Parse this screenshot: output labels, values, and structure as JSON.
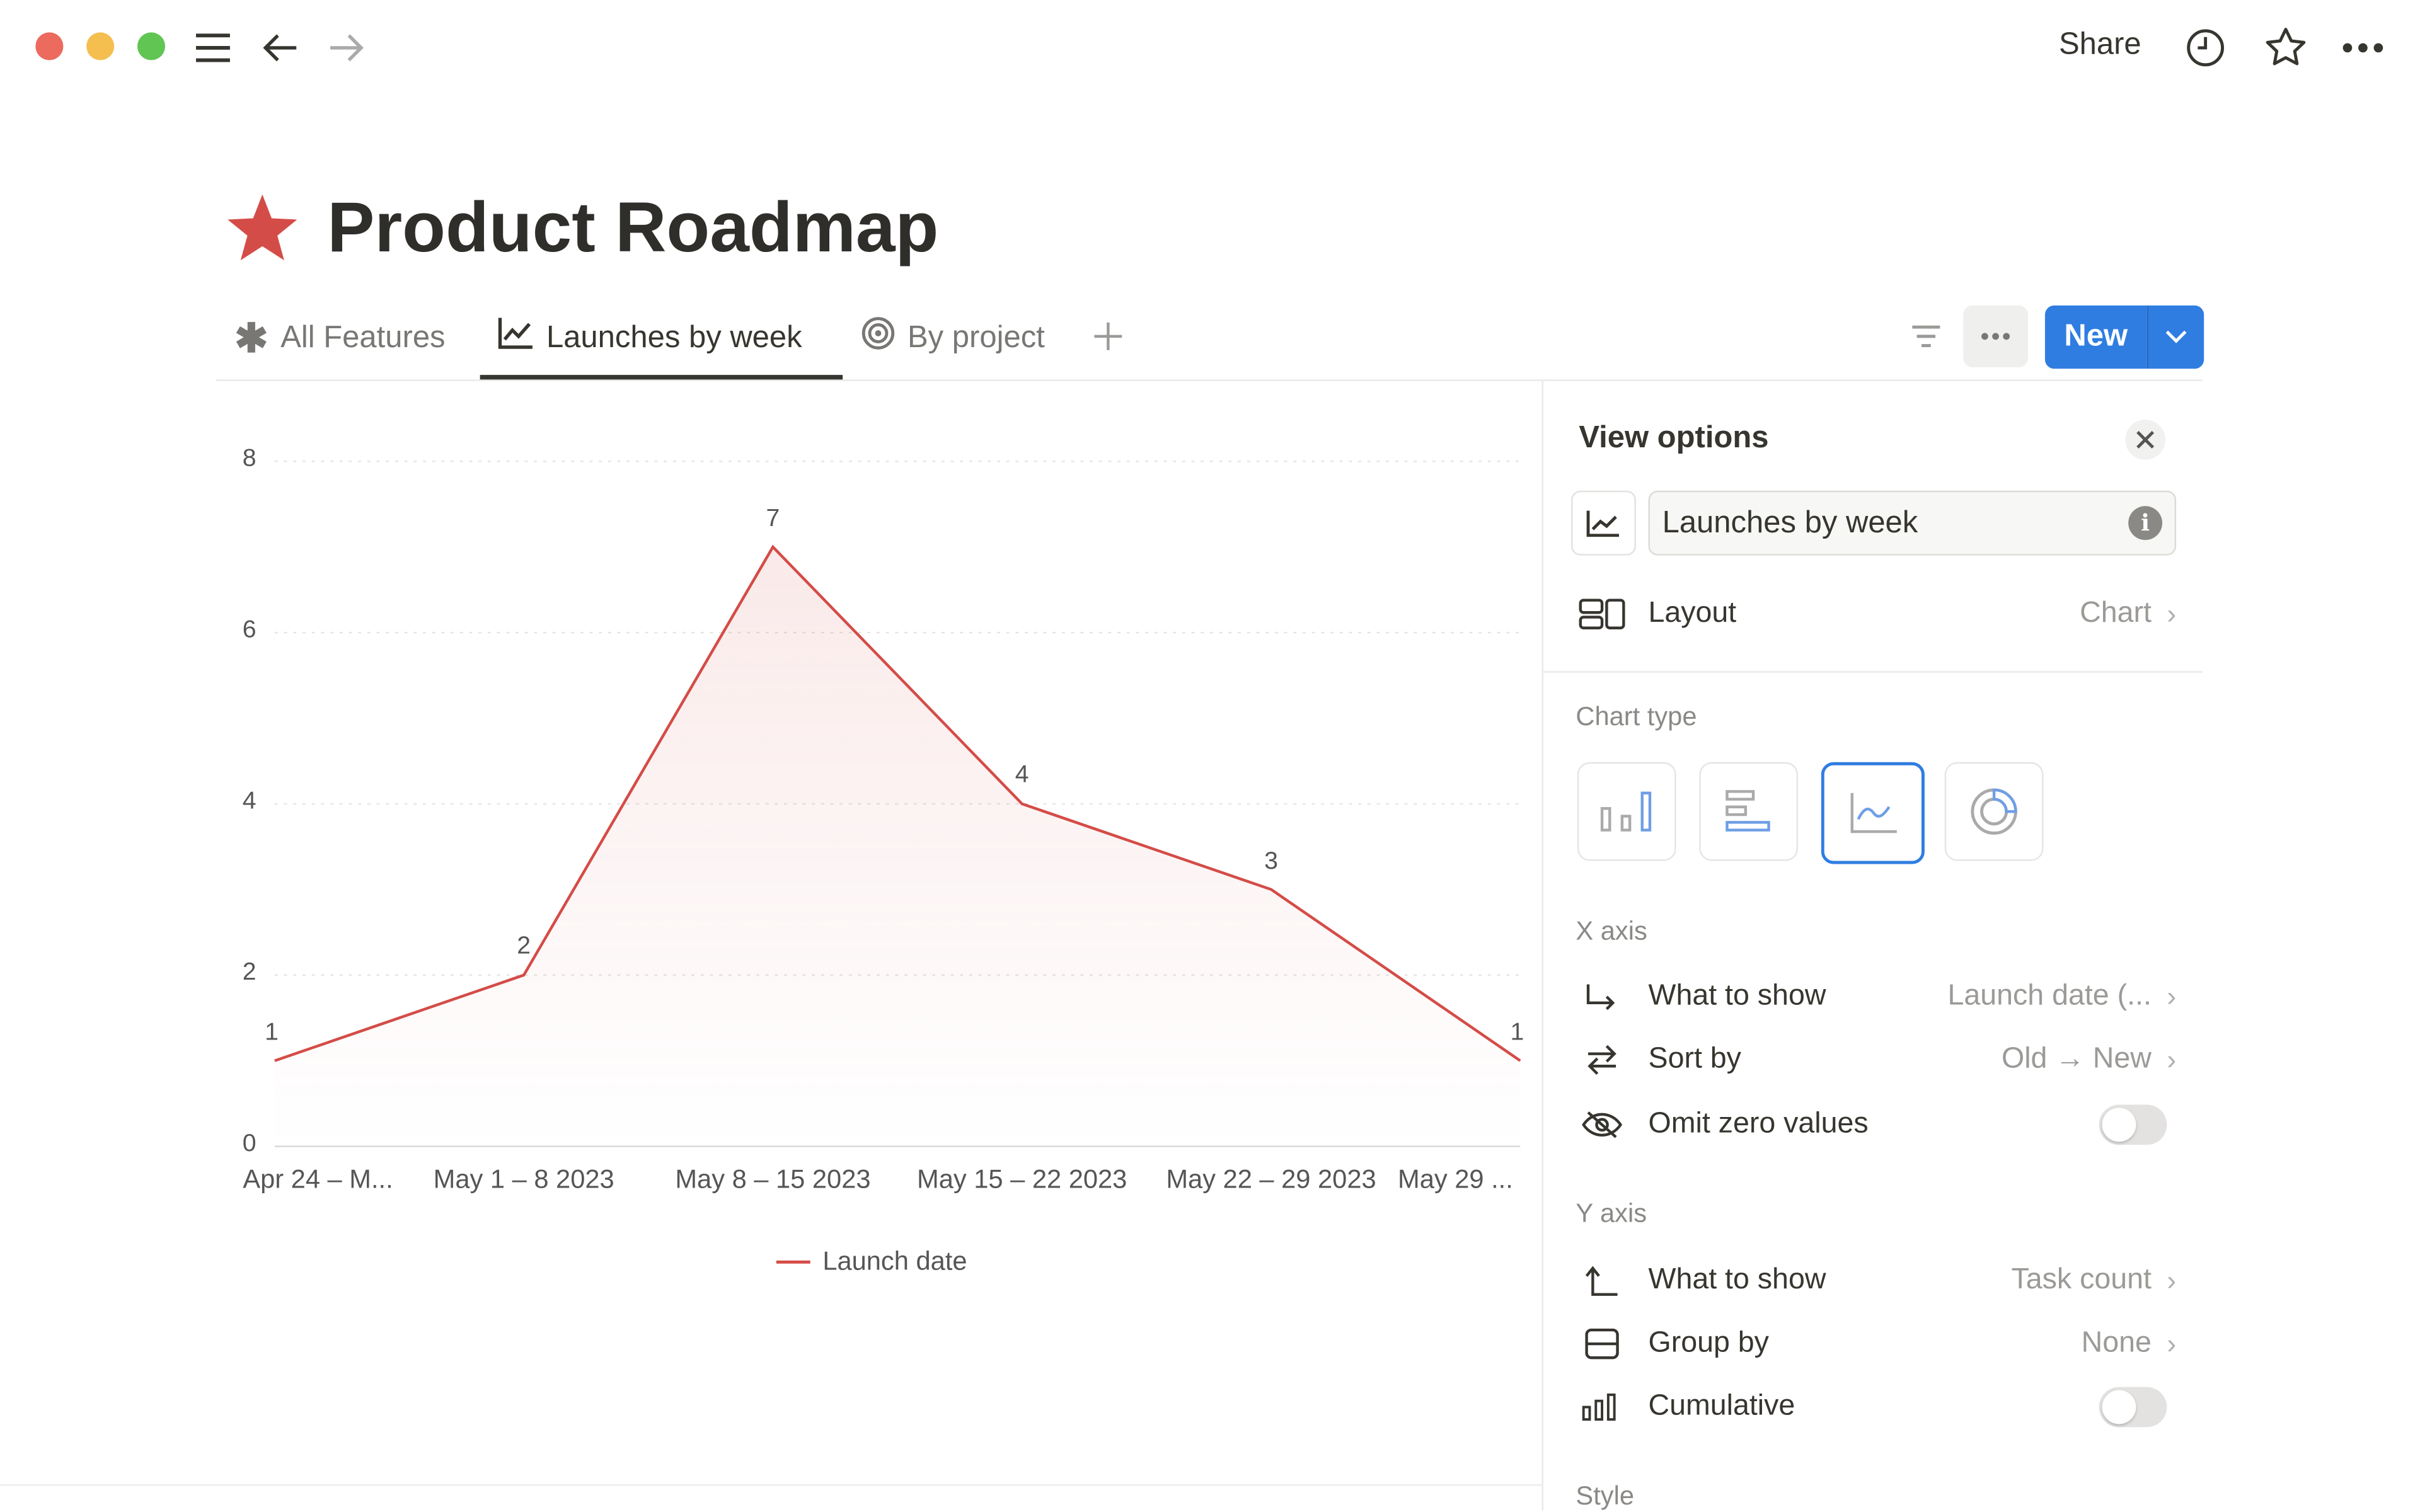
{
  "window": {
    "traffic_lights": [
      "#ed6a5e",
      "#f4bf4f",
      "#61c554"
    ]
  },
  "topbar": {
    "share_label": "Share"
  },
  "page": {
    "title": "Product Roadmap",
    "icon": "star-icon",
    "icon_color": "#d44c47"
  },
  "tabs": [
    {
      "label": "All Features",
      "icon": "asterisk-icon",
      "active": false
    },
    {
      "label": "Launches by week",
      "icon": "line-chart-icon",
      "active": true
    },
    {
      "label": "By project",
      "icon": "target-icon",
      "active": false
    }
  ],
  "toolbar": {
    "new_label": "New",
    "accent": "#2f7de1"
  },
  "chart_data": {
    "type": "line",
    "categories": [
      "Apr 24 – M...",
      "May 1 – 8 2023",
      "May 8 – 15 2023",
      "May 15 – 22 2023",
      "May 22 – 29 2023",
      "May 29 ..."
    ],
    "series": [
      {
        "name": "Launch date",
        "values": [
          1,
          2,
          7,
          4,
          3,
          1
        ],
        "color": "#d44c47"
      }
    ],
    "yticks": [
      0,
      2,
      4,
      6,
      8
    ],
    "ylim": [
      0,
      8
    ],
    "grid": true,
    "legend": "bottom",
    "data_labels": true
  },
  "panel": {
    "title": "View options",
    "view_name": "Launches by week",
    "layout_label": "Layout",
    "layout_value": "Chart",
    "chart_type_label": "Chart type",
    "chart_types": [
      "vertical-bar",
      "horizontal-bar",
      "line",
      "donut"
    ],
    "selected_chart_type": "line",
    "x_axis_label": "X axis",
    "x_what_label": "What to show",
    "x_what_value": "Launch date (...",
    "sort_label": "Sort by",
    "sort_value": "Old → New",
    "omit_label": "Omit zero values",
    "omit_on": false,
    "y_axis_label": "Y axis",
    "y_what_label": "What to show",
    "y_what_value": "Task count",
    "group_label": "Group by",
    "group_value": "None",
    "cumulative_label": "Cumulative",
    "cumulative_on": false,
    "style_label": "Style"
  }
}
